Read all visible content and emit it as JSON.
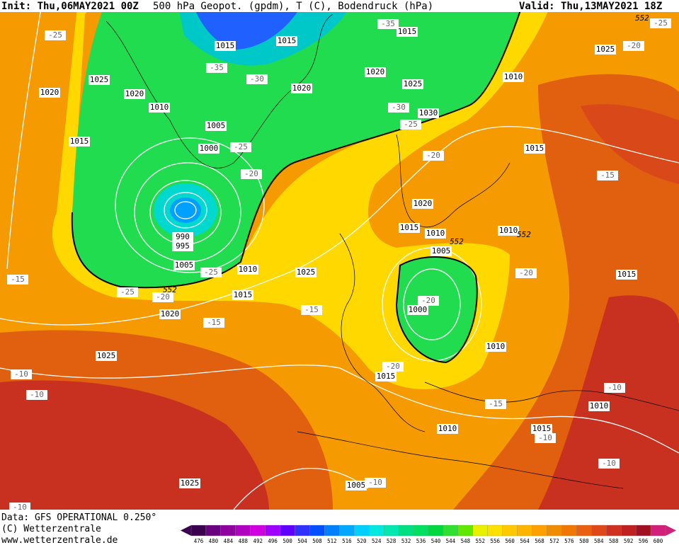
{
  "header": {
    "init": "Init: Thu,06MAY2021 00Z",
    "title": "500 hPa Geopot. (gpdm), T (C), Bodendruck (hPa)",
    "valid": "Valid: Thu,13MAY2021 18Z"
  },
  "footer": {
    "source": "Data: GFS OPERATIONAL 0.250°",
    "copyright": "(C) Wetterzentrale",
    "url": "www.wetterzentrale.de"
  },
  "map_labels": {
    "pressure": [
      1015,
      1015,
      1015,
      1025,
      1020,
      1020,
      1010,
      1020,
      1025,
      1020,
      1010,
      1025,
      1030,
      1005,
      1000,
      1015,
      1015,
      990,
      995,
      1020,
      1015,
      1010,
      1010,
      1005,
      1005,
      1010,
      1025,
      1015,
      1020,
      1015,
      1000,
      1010,
      1025,
      1015,
      1010,
      1010,
      1015,
      1025,
      1005
    ],
    "temperature": [
      -25,
      -35,
      -25,
      -20,
      -35,
      -30,
      -30,
      -25,
      -25,
      -20,
      -20,
      -15,
      -15,
      -25,
      -25,
      -20,
      -20,
      -20,
      -15,
      -15,
      -10,
      -10,
      -20,
      -10,
      -15,
      -10,
      -10,
      -10,
      -10
    ],
    "geopotential": [
      552,
      552,
      552,
      552
    ]
  },
  "colorbar": {
    "ticks": [
      476,
      480,
      484,
      488,
      492,
      496,
      500,
      504,
      508,
      512,
      516,
      520,
      524,
      528,
      532,
      536,
      540,
      544,
      548,
      552,
      556,
      560,
      564,
      568,
      572,
      576,
      580,
      584,
      588,
      592,
      596,
      600
    ],
    "colors": [
      "#3c0050",
      "#6a0080",
      "#9000a0",
      "#b000c0",
      "#d000e0",
      "#a000ff",
      "#6000ff",
      "#3030ff",
      "#0050ff",
      "#0080ff",
      "#00a8ff",
      "#00d0ff",
      "#00e8e0",
      "#00e8b0",
      "#00e080",
      "#00e060",
      "#00d840",
      "#30e030",
      "#60e800",
      "#e8f000",
      "#ffe000",
      "#ffc800",
      "#ffb400",
      "#ffa000",
      "#f08c00",
      "#f07800",
      "#e86010",
      "#e04818",
      "#d03020",
      "#c02020",
      "#a01020",
      "#d0207a"
    ]
  }
}
